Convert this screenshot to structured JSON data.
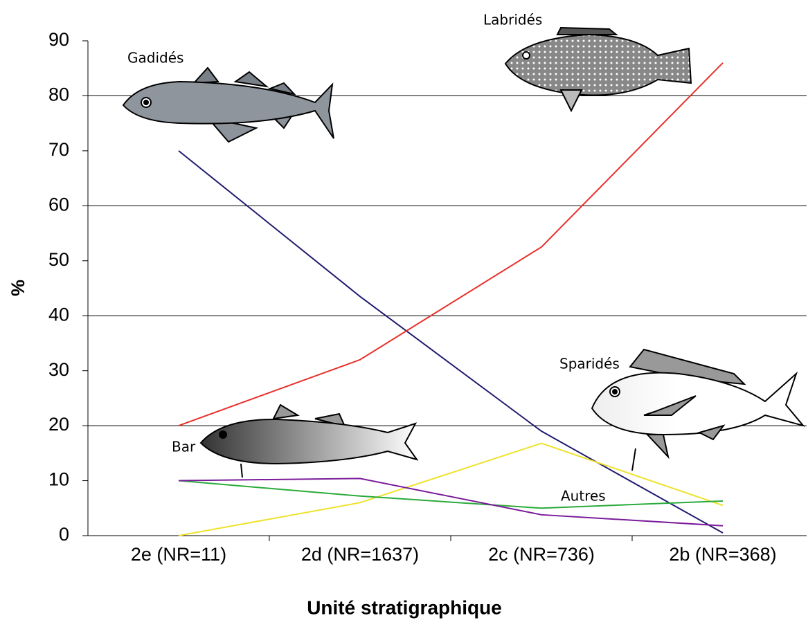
{
  "chart_data": {
    "type": "line",
    "x_label": "Unité stratigraphique",
    "y_label": "%",
    "categories": [
      "2e (NR=11)",
      "2d (NR=1637)",
      "2c (NR=736)",
      "2b (NR=368)"
    ],
    "series": [
      {
        "name": "Gadidés",
        "color": "#1f1a6e",
        "values": [
          70,
          43.5,
          19,
          0.5
        ]
      },
      {
        "name": "Labridés",
        "color": "#e8302a",
        "values": [
          20,
          32,
          52.5,
          86
        ]
      },
      {
        "name": "Sparidés",
        "color": "#eee22a",
        "values": [
          0,
          6,
          16.8,
          5.5
        ]
      },
      {
        "name": "Autres",
        "color": "#2aaa3a",
        "values": [
          10,
          7.2,
          5,
          6.3
        ]
      },
      {
        "name": "Bar",
        "color": "#7a1a9a",
        "values": [
          10,
          10.4,
          3.8,
          1.8
        ]
      }
    ],
    "ylim": [
      0,
      90
    ],
    "yticks": [
      0,
      10,
      20,
      30,
      40,
      50,
      60,
      70,
      80,
      90
    ],
    "grid": true
  }
}
